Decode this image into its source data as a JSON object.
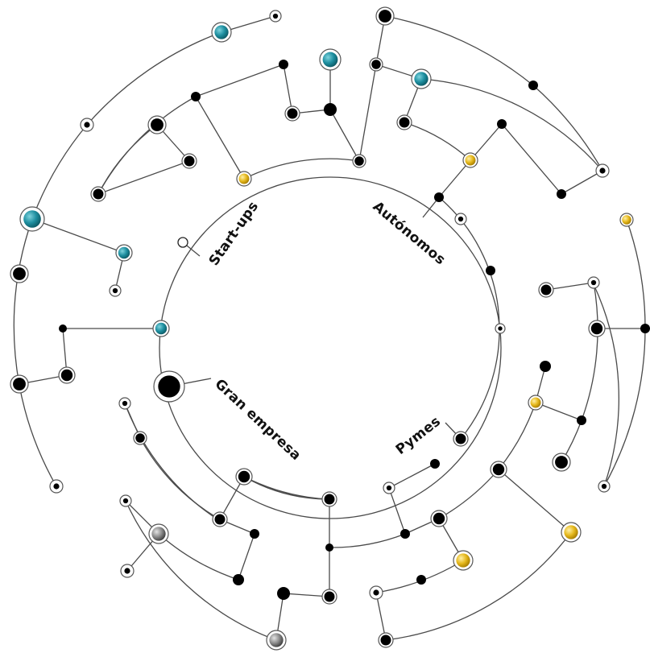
{
  "diagram": {
    "type": "radial-tree",
    "segments": [
      {
        "id": "startups",
        "label": "Start-ups"
      },
      {
        "id": "autonomos",
        "label": "Autónomos"
      },
      {
        "id": "pymes",
        "label": "Pymes"
      },
      {
        "id": "gran",
        "label": "Gran empresa"
      }
    ],
    "colors": {
      "teal": "#1e8fa0",
      "gold": "#e5b81c",
      "gray": "#8a8a8a",
      "black": "#000000",
      "line": "#4a4a4a"
    }
  }
}
